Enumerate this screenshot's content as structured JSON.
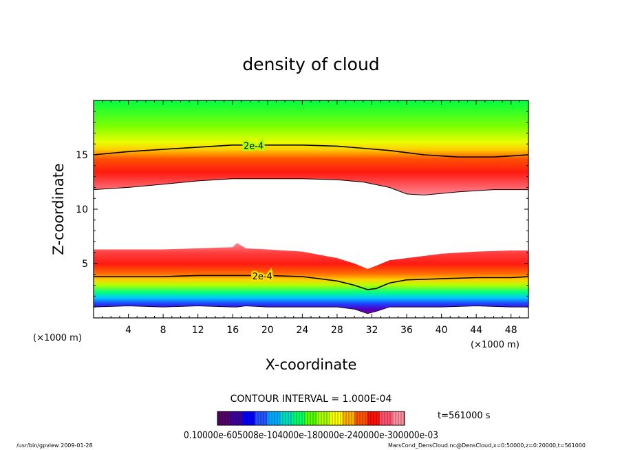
{
  "chart_data": {
    "type": "heatmap",
    "title": "density of cloud",
    "xlabel": "X-coordinate",
    "ylabel": "Z-coordinate",
    "x_unit_left": "(×1000 m)",
    "x_unit_right": "(×1000 m)",
    "xlim": [
      0,
      50
    ],
    "ylim": [
      0,
      20
    ],
    "x_ticks": [
      4,
      8,
      12,
      16,
      20,
      24,
      28,
      32,
      36,
      40,
      44,
      48
    ],
    "x_tick_labels": [
      "4",
      "8",
      "12",
      "16",
      "20",
      "24",
      "28",
      "32",
      "36",
      "40",
      "44",
      "48"
    ],
    "y_ticks": [
      5,
      10,
      15
    ],
    "y_tick_labels": [
      "5",
      "10",
      "15"
    ],
    "upper_layer": {
      "x": [
        0,
        4,
        8,
        12,
        16,
        20,
        24,
        28,
        31,
        34,
        36,
        38,
        42,
        46,
        50
      ],
      "bottom": [
        11.8,
        12.0,
        12.3,
        12.6,
        12.8,
        12.8,
        12.8,
        12.7,
        12.5,
        12.0,
        11.4,
        11.3,
        11.6,
        11.8,
        11.8
      ],
      "contour_2e4": [
        15.0,
        15.3,
        15.5,
        15.7,
        15.9,
        15.9,
        15.9,
        15.8,
        15.6,
        15.4,
        15.2,
        15.0,
        14.8,
        14.8,
        15.0
      ],
      "top": [
        20,
        20,
        20,
        20,
        20,
        20,
        20,
        20,
        20,
        20,
        20,
        20,
        20,
        20,
        20
      ]
    },
    "lower_layer": {
      "x": [
        0,
        4,
        8,
        12,
        16,
        16.5,
        17.5,
        20,
        24,
        28,
        30,
        31.5,
        32.5,
        34,
        36,
        40,
        44,
        48,
        50
      ],
      "top": [
        6.3,
        6.3,
        6.3,
        6.4,
        6.5,
        6.9,
        6.4,
        6.3,
        6.1,
        5.5,
        5.0,
        4.5,
        4.8,
        5.3,
        5.5,
        5.9,
        6.1,
        6.2,
        6.2
      ],
      "contour_2e4": [
        3.8,
        3.8,
        3.8,
        3.9,
        3.9,
        3.9,
        3.9,
        3.9,
        3.8,
        3.4,
        3.0,
        2.6,
        2.7,
        3.2,
        3.5,
        3.6,
        3.7,
        3.7,
        3.8
      ],
      "bottom": [
        1.0,
        1.1,
        1.0,
        1.1,
        1.0,
        1.0,
        1.1,
        1.0,
        1.0,
        1.0,
        0.8,
        0.4,
        0.6,
        1.0,
        1.0,
        1.0,
        1.1,
        1.0,
        1.0
      ]
    },
    "contour_labels": [
      {
        "text": "2e-4",
        "x": 18.4,
        "y": 15.85
      },
      {
        "text": "2e-4",
        "x": 19.4,
        "y": 3.85
      }
    ],
    "contour_interval_text": "CONTOUR INTERVAL = 1.000E-04",
    "time_text": "t=561000 s",
    "colorbar": {
      "colors": [
        "#55006b",
        "#3c00a0",
        "#0000ff",
        "#2255ff",
        "#00aaff",
        "#00e0c0",
        "#00ff66",
        "#55ff00",
        "#aaff00",
        "#ffff00",
        "#ffb000",
        "#ff5500",
        "#ff1000",
        "#ff5070",
        "#ff90a0"
      ],
      "label_text": "0.10000e-605008e-104000e-180000e-240000e-300000e-03"
    }
  },
  "footer": {
    "left": "/usr/bin/gpview  2009-01-28",
    "right": "MarsCond_DensCloud.nc@DensCloud,x=0:50000,z=0:20000,t=561000"
  }
}
